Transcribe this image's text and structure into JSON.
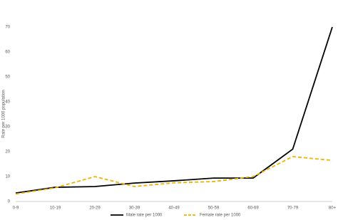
{
  "chart_data": {
    "type": "line",
    "y_label": "Rate per 1000 population",
    "categories": [
      "0-9",
      "10-19",
      "20-29",
      "30-39",
      "40-49",
      "50-59",
      "60-69",
      "70-79",
      "80+"
    ],
    "series": [
      {
        "name": "Male rate per 1000",
        "color": "#000000",
        "dash": false,
        "values": [
          3.4,
          5.7,
          6,
          7.4,
          8.3,
          9.4,
          9.4,
          21,
          70
        ]
      },
      {
        "name": "Female rate per 1000",
        "color": "#f0b400",
        "dash": true,
        "values": [
          3,
          5.5,
          10,
          6,
          7.5,
          8,
          10,
          18,
          16.5
        ]
      }
    ],
    "ylim": [
      0,
      70
    ],
    "yticks": [
      0,
      10,
      20,
      30,
      40,
      50,
      60,
      70
    ],
    "grid": false,
    "legend": "bottom"
  }
}
